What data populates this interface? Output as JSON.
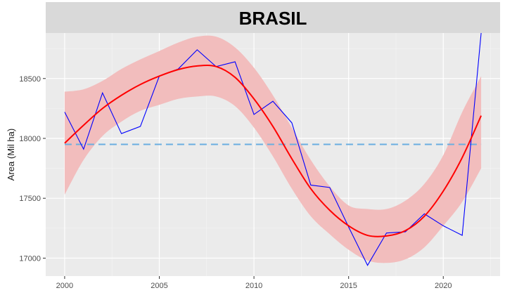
{
  "chart_data": {
    "type": "line",
    "title": "BRASIL",
    "xlabel": "",
    "ylabel": "Area (Mil ha)",
    "xlim": [
      1999,
      2023
    ],
    "ylim": [
      16850,
      18880
    ],
    "x_ticks": [
      2000,
      2005,
      2010,
      2015,
      2020
    ],
    "y_ticks": [
      17000,
      17500,
      18000,
      18500
    ],
    "grid": true,
    "legend": "none",
    "series": [
      {
        "kind": "observed",
        "color": "#0000ff",
        "x": [
          2000,
          2001,
          2002,
          2003,
          2004,
          2005,
          2006,
          2007,
          2008,
          2009,
          2010,
          2011,
          2012,
          2013,
          2014,
          2015,
          2016,
          2017,
          2018,
          2019,
          2020,
          2021,
          2022
        ],
        "y": [
          18220,
          17910,
          18380,
          18040,
          18100,
          18520,
          18580,
          18740,
          18600,
          18640,
          18200,
          18310,
          18130,
          17610,
          17590,
          17260,
          16940,
          17210,
          17220,
          17370,
          17270,
          17190,
          18880
        ]
      },
      {
        "kind": "smooth",
        "color": "#ff0000",
        "x": [
          2000,
          2001,
          2002,
          2003,
          2004,
          2005,
          2006,
          2007,
          2008,
          2009,
          2010,
          2011,
          2012,
          2013,
          2014,
          2015,
          2016,
          2017,
          2018,
          2019,
          2020,
          2021,
          2022
        ],
        "y": [
          17960,
          18110,
          18250,
          18360,
          18450,
          18520,
          18575,
          18605,
          18600,
          18510,
          18330,
          18100,
          17830,
          17580,
          17400,
          17270,
          17190,
          17185,
          17230,
          17350,
          17560,
          17840,
          18190
        ],
        "band_upper": [
          18390,
          18410,
          18480,
          18580,
          18660,
          18730,
          18800,
          18850,
          18850,
          18760,
          18590,
          18360,
          18090,
          17820,
          17600,
          17440,
          17410,
          17410,
          17480,
          17620,
          17860,
          18220,
          18520
        ],
        "band_lower": [
          17530,
          17820,
          18020,
          18140,
          18230,
          18280,
          18330,
          18350,
          18350,
          18270,
          18090,
          17850,
          17580,
          17350,
          17200,
          17070,
          16980,
          16960,
          16990,
          17090,
          17270,
          17470,
          17750
        ],
        "band_color": "#f2bdbd"
      },
      {
        "kind": "reference",
        "color": "#6aaee0",
        "y": 17950
      }
    ]
  }
}
